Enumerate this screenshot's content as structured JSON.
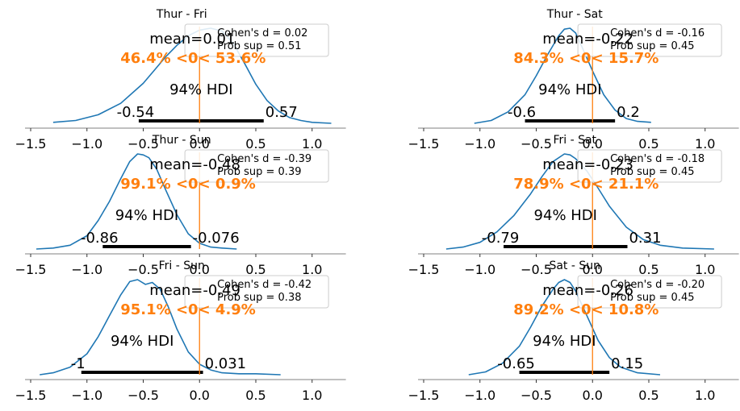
{
  "chart_data": [
    {
      "type": "area",
      "title": "Thur - Fri",
      "mean_label": "mean=0.01",
      "prob_label": "46.4% <0< 53.6%",
      "hdi_label": "94% HDI",
      "hdi": [
        -0.54,
        0.57
      ],
      "hdi_low_label": "-0.54",
      "hdi_high_label": "0.57",
      "ref_value": 0,
      "legend": [
        "Cohen's d = 0.02",
        "Prob sup = 0.51"
      ],
      "xlim": [
        -1.55,
        1.3
      ],
      "xticks": [
        -1.5,
        -1.0,
        -0.5,
        0.0,
        0.5,
        1.0
      ],
      "xtick_labels": [
        "−1.5",
        "−1.0",
        "−0.5",
        "0.0",
        "0.5",
        "1.0"
      ],
      "density": {
        "x": [
          -1.3,
          -1.1,
          -0.9,
          -0.7,
          -0.5,
          -0.4,
          -0.3,
          -0.2,
          -0.1,
          0.0,
          0.1,
          0.2,
          0.3,
          0.4,
          0.5,
          0.6,
          0.7,
          0.8,
          0.9,
          1.0,
          1.17
        ],
        "y": [
          0.01,
          0.03,
          0.09,
          0.21,
          0.42,
          0.56,
          0.7,
          0.82,
          0.92,
          0.98,
          1.0,
          0.97,
          0.84,
          0.63,
          0.41,
          0.24,
          0.13,
          0.06,
          0.03,
          0.01,
          0.0
        ]
      }
    },
    {
      "type": "area",
      "title": "Thur - Sat",
      "mean_label": "mean=-0.22",
      "prob_label": "84.3% <0< 15.7%",
      "hdi_label": "94% HDI",
      "hdi": [
        -0.6,
        0.2
      ],
      "hdi_low_label": "-0.6",
      "hdi_high_label": "0.2",
      "ref_value": 0,
      "legend": [
        "Cohen's d = -0.16",
        "Prob sup = 0.45"
      ],
      "xlim": [
        -1.55,
        1.3
      ],
      "xticks": [
        -1.5,
        -1.0,
        -0.5,
        0.0,
        0.5,
        1.0
      ],
      "xtick_labels": [
        "−1.5",
        "−1.0",
        "−0.5",
        "0.0",
        "0.5",
        "1.0"
      ],
      "density": {
        "x": [
          -1.05,
          -0.9,
          -0.75,
          -0.6,
          -0.5,
          -0.4,
          -0.3,
          -0.25,
          -0.2,
          -0.15,
          -0.1,
          0.0,
          0.1,
          0.2,
          0.3,
          0.4,
          0.52
        ],
        "y": [
          0.0,
          0.03,
          0.12,
          0.3,
          0.5,
          0.72,
          0.92,
          0.99,
          1.0,
          0.95,
          0.82,
          0.55,
          0.3,
          0.14,
          0.05,
          0.02,
          0.01
        ]
      }
    },
    {
      "type": "area",
      "title": "Thur - Sun",
      "mean_label": "mean=-0.48",
      "prob_label": "99.1% <0< 0.9%",
      "hdi_label": "94% HDI",
      "hdi": [
        -0.86,
        -0.076
      ],
      "hdi_low_label": "-0.86",
      "hdi_high_label": "-0.076",
      "ref_value": 0,
      "legend": [
        "Cohen's d = -0.39",
        "Prob sup = 0.39"
      ],
      "xlim": [
        -1.55,
        1.3
      ],
      "xticks": [
        -1.5,
        -1.0,
        -0.5,
        0.0,
        0.5,
        1.0
      ],
      "xtick_labels": [
        "−1.5",
        "−1.0",
        "−0.5",
        "0.0",
        "0.5",
        "1.0"
      ],
      "density": {
        "x": [
          -1.45,
          -1.3,
          -1.15,
          -1.0,
          -0.9,
          -0.8,
          -0.7,
          -0.62,
          -0.55,
          -0.5,
          -0.45,
          -0.38,
          -0.3,
          -0.2,
          -0.1,
          0.0,
          0.1,
          0.2,
          0.33
        ],
        "y": [
          0.0,
          0.01,
          0.04,
          0.14,
          0.3,
          0.5,
          0.74,
          0.92,
          1.0,
          0.99,
          0.96,
          0.84,
          0.62,
          0.36,
          0.16,
          0.06,
          0.02,
          0.01,
          0.0
        ]
      }
    },
    {
      "type": "area",
      "title": "Fri - Sat",
      "mean_label": "mean=-0.23",
      "prob_label": "78.9% <0< 21.1%",
      "hdi_label": "94% HDI",
      "hdi": [
        -0.79,
        0.31
      ],
      "hdi_low_label": "-0.79",
      "hdi_high_label": "0.31",
      "ref_value": 0,
      "legend": [
        "Cohen's d = -0.18",
        "Prob sup = 0.45"
      ],
      "xlim": [
        -1.55,
        1.3
      ],
      "xticks": [
        -1.5,
        -1.0,
        -0.5,
        0.0,
        0.5,
        1.0
      ],
      "xtick_labels": [
        "−1.5",
        "−1.0",
        "−0.5",
        "0.0",
        "0.5",
        "1.0"
      ],
      "density": {
        "x": [
          -1.3,
          -1.15,
          -1.0,
          -0.85,
          -0.7,
          -0.55,
          -0.45,
          -0.35,
          -0.25,
          -0.2,
          -0.15,
          -0.05,
          0.05,
          0.15,
          0.3,
          0.45,
          0.6,
          0.8,
          1.08
        ],
        "y": [
          0.0,
          0.02,
          0.07,
          0.18,
          0.35,
          0.58,
          0.76,
          0.92,
          1.0,
          0.99,
          0.95,
          0.82,
          0.64,
          0.45,
          0.23,
          0.1,
          0.04,
          0.01,
          0.0
        ]
      }
    },
    {
      "type": "area",
      "title": "Fri - Sun",
      "mean_label": "mean=-0.49",
      "prob_label": "95.1% <0< 4.9%",
      "hdi_label": "94% HDI",
      "hdi": [
        -1.05,
        0.031
      ],
      "hdi_low_label": "-1",
      "hdi_high_label": "0.031",
      "ref_value": 0,
      "legend": [
        "Cohen's d = -0.42",
        "Prob sup = 0.38"
      ],
      "xlim": [
        -1.55,
        1.3
      ],
      "xticks": [
        -1.5,
        -1.0,
        -0.5,
        0.0,
        0.5,
        1.0
      ],
      "xtick_labels": [
        "−1.5",
        "−1.0",
        "−0.5",
        "0.0",
        "0.5",
        "1.0"
      ],
      "density": {
        "x": [
          -1.42,
          -1.3,
          -1.15,
          -1.0,
          -0.9,
          -0.8,
          -0.7,
          -0.62,
          -0.55,
          -0.48,
          -0.42,
          -0.35,
          -0.28,
          -0.2,
          -0.1,
          0.0,
          0.1,
          0.2,
          0.35,
          0.5,
          0.72
        ],
        "y": [
          0.0,
          0.02,
          0.08,
          0.22,
          0.4,
          0.62,
          0.84,
          0.98,
          1.0,
          0.95,
          0.97,
          0.9,
          0.72,
          0.48,
          0.24,
          0.11,
          0.05,
          0.02,
          0.01,
          0.01,
          0.0
        ]
      }
    },
    {
      "type": "area",
      "title": "Sat - Sun",
      "mean_label": "mean=-0.26",
      "prob_label": "89.2% <0< 10.8%",
      "hdi_label": "94% HDI",
      "hdi": [
        -0.65,
        0.15
      ],
      "hdi_low_label": "-0.65",
      "hdi_high_label": "0.15",
      "ref_value": 0,
      "legend": [
        "Cohen's d = -0.20",
        "Prob sup = 0.45"
      ],
      "xlim": [
        -1.55,
        1.3
      ],
      "xticks": [
        -1.5,
        -1.0,
        -0.5,
        0.0,
        0.5,
        1.0
      ],
      "xtick_labels": [
        "−1.5",
        "−1.0",
        "−0.5",
        "0.0",
        "0.5",
        "1.0"
      ],
      "density": {
        "x": [
          -1.1,
          -0.95,
          -0.8,
          -0.65,
          -0.55,
          -0.45,
          -0.35,
          -0.3,
          -0.25,
          -0.2,
          -0.15,
          -0.05,
          0.05,
          0.15,
          0.25,
          0.4,
          0.6
        ],
        "y": [
          0.0,
          0.03,
          0.12,
          0.3,
          0.5,
          0.72,
          0.9,
          0.97,
          1.0,
          0.97,
          0.88,
          0.62,
          0.36,
          0.18,
          0.08,
          0.02,
          0.0
        ]
      }
    }
  ],
  "colors": {
    "curve": "#1f77b4",
    "ref_line": "#ff7f0e",
    "prob_text": "#ff7f0e",
    "hdi_bar": "#000000",
    "text": "#000000",
    "spine": "#808080",
    "mean_overflow": "#c8c8c8"
  }
}
